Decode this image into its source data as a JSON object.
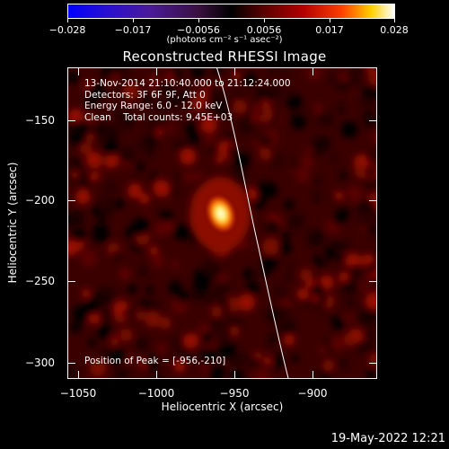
{
  "colorbar": {
    "tick_labels": [
      "−0.028",
      "−0.017",
      "−0.0056",
      "0.0056",
      "0.017",
      "0.028"
    ],
    "units": "(photons cm⁻² s⁻¹ asec⁻²)",
    "range": [
      -0.028,
      0.028
    ]
  },
  "title": "Reconstructed RHESSI Image",
  "info": {
    "line1": "13-Nov-2014 21:10:40.000 to 21:12:24.000",
    "line2": "Detectors: 3F 6F 9F, Att 0",
    "line3": "Energy Range: 6.0 - 12.0 keV",
    "line4": "Clean    Total counts: 9.45E+03"
  },
  "peak_label": "Position of Peak = [-956,-210]",
  "axes": {
    "x_title": "Heliocentric X (arcsec)",
    "y_title": "Heliocentric Y (arcsec)",
    "x_ticks": [
      "−1050",
      "−1000",
      "−950",
      "−900"
    ],
    "y_ticks": [
      "−150",
      "−200",
      "−250",
      "−300"
    ],
    "x_range": [
      -1057,
      -858
    ],
    "y_range": [
      -311,
      -110
    ]
  },
  "footer": {
    "timestamp": "19-May-2022 12:21"
  },
  "peak": {
    "x": -956,
    "y": -210
  }
}
